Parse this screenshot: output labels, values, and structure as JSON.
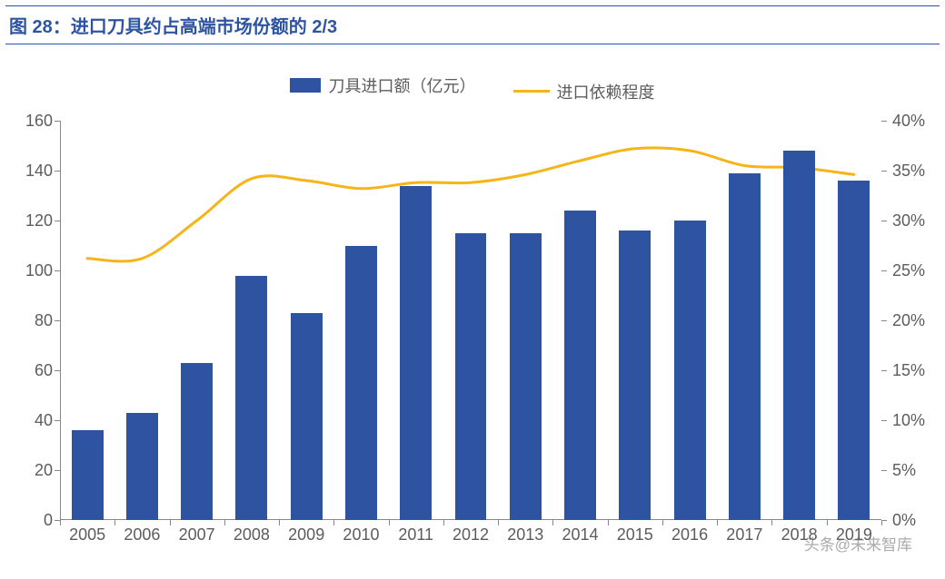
{
  "title": "图 28：进口刀具约占高端市场份额的 2/3",
  "legend": {
    "bar_label": "刀具进口额（亿元）",
    "line_label": "进口依赖程度"
  },
  "chart": {
    "type": "bar+line",
    "categories": [
      "2005",
      "2006",
      "2007",
      "2008",
      "2009",
      "2010",
      "2011",
      "2012",
      "2013",
      "2014",
      "2015",
      "2016",
      "2017",
      "2018",
      "2019"
    ],
    "bar_values": [
      36,
      43,
      63,
      98,
      83,
      110,
      134,
      115,
      115,
      124,
      116,
      120,
      139,
      148,
      136
    ],
    "line_values_pct": [
      26.2,
      26.2,
      30.0,
      34.2,
      34.0,
      33.2,
      33.8,
      33.8,
      34.6,
      36.0,
      37.2,
      37.0,
      35.5,
      35.3,
      34.6
    ],
    "y_left": {
      "min": 0,
      "max": 160,
      "step": 20
    },
    "y_right": {
      "min": 0,
      "max": 40,
      "step": 5,
      "suffix": "%"
    },
    "colors": {
      "bar": "#2e54a1",
      "line": "#f5b417",
      "axis": "#888888",
      "text": "#5c5c5c",
      "title": "#2e54a1",
      "background": "#ffffff"
    },
    "bar_width_ratio": 0.58,
    "line_width": 3,
    "title_fontsize": 20,
    "axis_fontsize": 18,
    "legend_fontsize": 18
  },
  "watermark": "头条@未来智库"
}
